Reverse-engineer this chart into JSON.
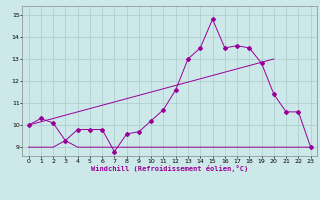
{
  "xlabel": "Windchill (Refroidissement éolien,°C)",
  "bg_color": "#cce8e8",
  "grid_color": "#aacccc",
  "line_color": "#990099",
  "xlim": [
    -0.5,
    23.5
  ],
  "ylim": [
    8.6,
    15.4
  ],
  "yticks": [
    9,
    10,
    11,
    12,
    13,
    14,
    15
  ],
  "xticks": [
    0,
    1,
    2,
    3,
    4,
    5,
    6,
    7,
    8,
    9,
    10,
    11,
    12,
    13,
    14,
    15,
    16,
    17,
    18,
    19,
    20,
    21,
    22,
    23
  ],
  "series1_x": [
    0,
    1,
    2,
    3,
    4,
    5,
    6,
    7,
    8,
    9,
    10,
    11,
    12,
    13,
    14,
    15,
    16,
    17,
    18,
    19,
    20,
    21,
    22,
    23
  ],
  "series1_y": [
    9.0,
    9.0,
    9.0,
    9.3,
    9.0,
    9.0,
    9.0,
    9.0,
    9.0,
    9.0,
    9.0,
    9.0,
    9.0,
    9.0,
    9.0,
    9.0,
    9.0,
    9.0,
    9.0,
    9.0,
    9.0,
    9.0,
    9.0,
    9.0
  ],
  "series2_x": [
    0,
    20
  ],
  "series2_y": [
    10.0,
    13.0
  ],
  "series3_x": [
    0,
    1,
    2,
    3,
    4,
    5,
    6,
    7,
    8,
    9,
    10,
    11,
    12,
    13,
    14,
    15,
    16,
    17,
    18,
    19,
    20,
    21,
    22,
    23
  ],
  "series3_y": [
    10.0,
    10.3,
    10.1,
    9.3,
    9.8,
    9.8,
    9.8,
    8.8,
    9.6,
    9.7,
    10.2,
    10.7,
    11.6,
    13.0,
    13.5,
    14.8,
    13.5,
    13.6,
    13.5,
    12.8,
    11.4,
    10.6,
    10.6,
    9.0
  ]
}
